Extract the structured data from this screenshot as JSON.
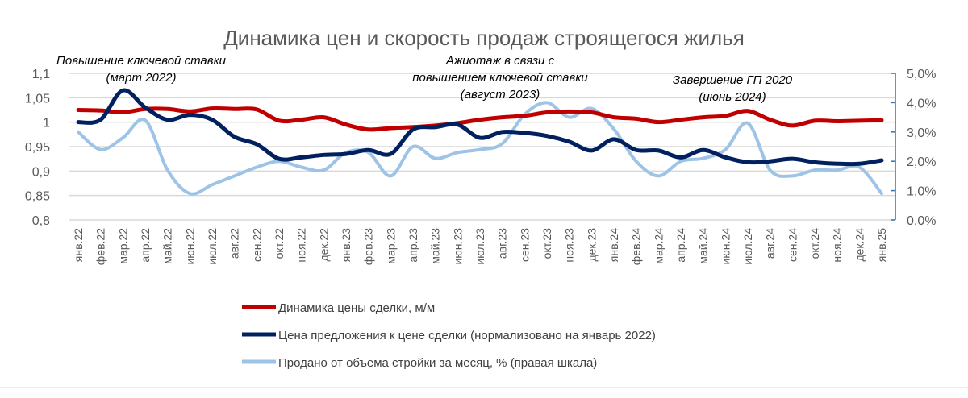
{
  "chart_data": {
    "type": "line",
    "title": "Динамика цен и скорость продаж строящегося жилья",
    "categories": [
      "янв.22",
      "фев.22",
      "мар.22",
      "апр.22",
      "май.22",
      "июн.22",
      "июл.22",
      "авг.22",
      "сен.22",
      "окт.22",
      "ноя.22",
      "дек.22",
      "янв.23",
      "фев.23",
      "мар.23",
      "апр.23",
      "май.23",
      "июн.23",
      "июл.23",
      "авг.23",
      "сен.23",
      "окт.23",
      "ноя.23",
      "дек.23",
      "янв.24",
      "фев.24",
      "мар.24",
      "апр.24",
      "май.24",
      "июн.24",
      "июл.24",
      "авг.24",
      "сен.24",
      "окт.24",
      "ноя.24",
      "дек.24",
      "янв.25"
    ],
    "y_left": {
      "range": [
        0.8,
        1.1
      ],
      "ticks": [
        "0,8",
        "0,85",
        "0,9",
        "0,95",
        "1",
        "1,05",
        "1,1"
      ]
    },
    "y_right": {
      "range": [
        0,
        5
      ],
      "ticks": [
        "0,0%",
        "1,0%",
        "2,0%",
        "3,0%",
        "4,0%",
        "5,0%"
      ]
    },
    "grid": true,
    "legend_position": "bottom",
    "series": [
      {
        "name": "Динамика цены сделки, м/м",
        "axis": "left",
        "color": "#c00000",
        "values": [
          1.025,
          1.024,
          1.02,
          1.027,
          1.027,
          1.022,
          1.028,
          1.027,
          1.026,
          1.003,
          1.005,
          1.01,
          0.995,
          0.985,
          0.988,
          0.99,
          0.993,
          0.998,
          1.005,
          1.01,
          1.013,
          1.02,
          1.022,
          1.02,
          1.01,
          1.007,
          1.0,
          1.005,
          1.01,
          1.013,
          1.023,
          1.005,
          0.993,
          1.003,
          1.002,
          1.003,
          1.004
        ]
      },
      {
        "name": "Цена предложения к цене сделки (нормализовано на январь 2022)",
        "axis": "left",
        "color": "#002060",
        "values": [
          1.0,
          1.005,
          1.065,
          1.03,
          1.005,
          1.015,
          1.005,
          0.97,
          0.955,
          0.925,
          0.928,
          0.933,
          0.935,
          0.943,
          0.935,
          0.985,
          0.99,
          0.995,
          0.968,
          0.98,
          0.978,
          0.972,
          0.96,
          0.942,
          0.965,
          0.943,
          0.942,
          0.928,
          0.943,
          0.928,
          0.918,
          0.92,
          0.925,
          0.918,
          0.915,
          0.915,
          0.922
        ]
      },
      {
        "name": "Продано от объема стройки за месяц, % (правая шкала)",
        "axis": "right",
        "color": "#9dc3e6",
        "values": [
          3.0,
          2.4,
          2.8,
          3.4,
          1.7,
          0.9,
          1.2,
          1.5,
          1.8,
          2.0,
          1.8,
          1.7,
          2.3,
          2.3,
          1.5,
          2.5,
          2.1,
          2.3,
          2.4,
          2.6,
          3.6,
          4.0,
          3.5,
          3.8,
          3.1,
          2.0,
          1.5,
          2.0,
          2.1,
          2.4,
          3.3,
          1.7,
          1.5,
          1.7,
          1.7,
          1.8,
          0.9
        ]
      }
    ],
    "annotations": [
      {
        "lines": [
          "Повышение ключевой ставки",
          "(март 2022)"
        ],
        "at": "мар.22"
      },
      {
        "lines": [
          "Ажиотаж в связи с",
          "повышением ключевой ставки",
          "(август 2023)"
        ],
        "at": "авг.23"
      },
      {
        "lines": [
          "Завершение ГП 2020",
          "(июнь 2024)"
        ],
        "at": "июн.24"
      }
    ]
  }
}
